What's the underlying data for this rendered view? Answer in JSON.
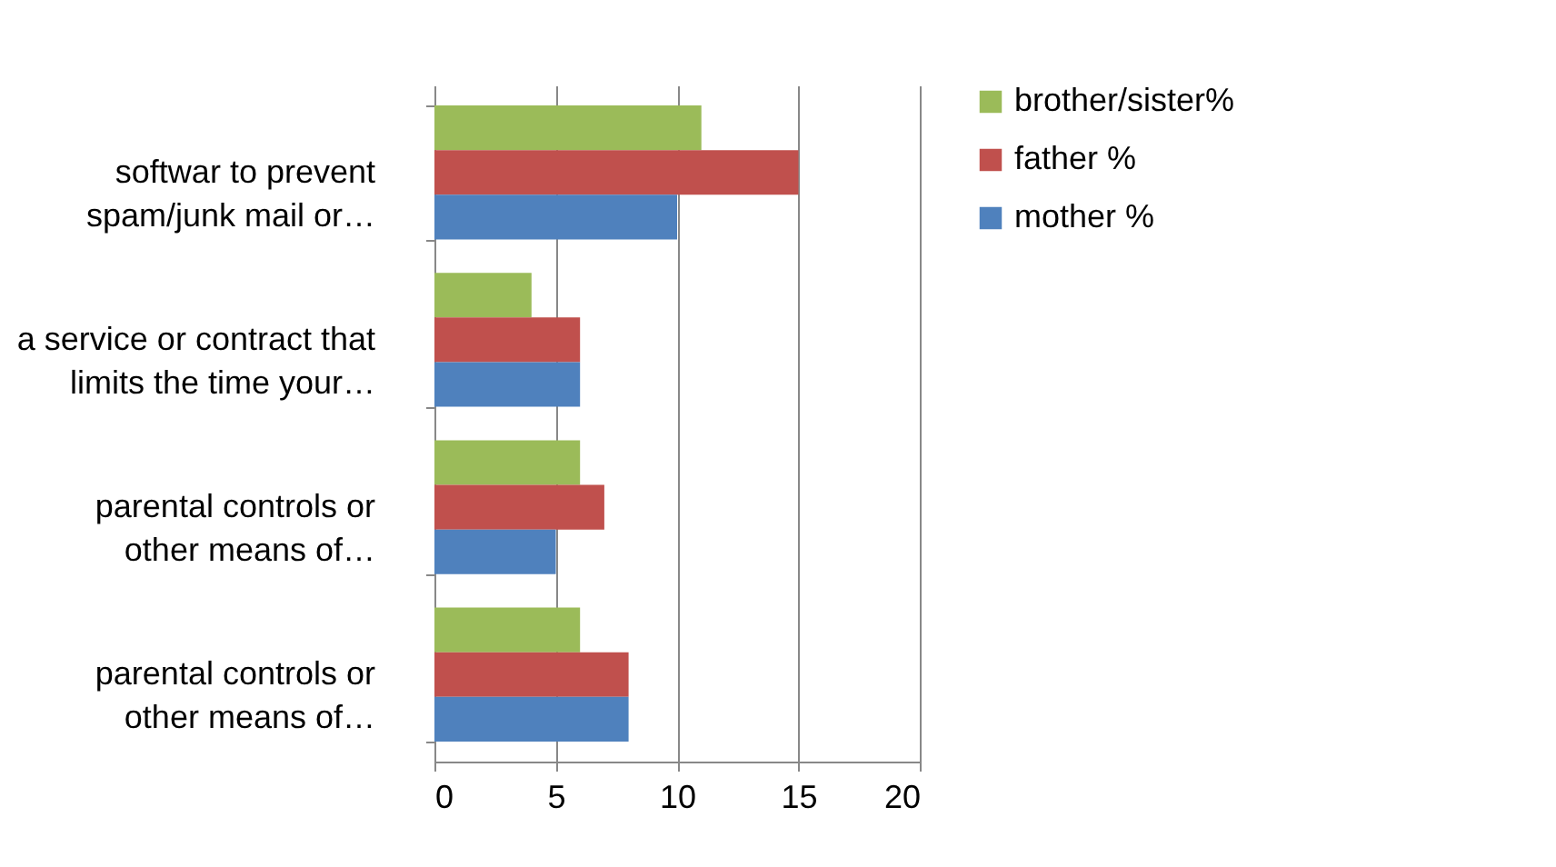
{
  "chart_data": {
    "type": "bar",
    "orientation": "horizontal",
    "categories": [
      "softwar to prevent\nspam/junk mail or…",
      "a service or contract that\nlimits the time your…",
      "parental controls or\nother means of…",
      "parental controls or\nother means of…"
    ],
    "series": [
      {
        "name": "brother/sister%",
        "color": "#9bbb59",
        "values": [
          11,
          4,
          6,
          6
        ]
      },
      {
        "name": "father %",
        "color": "#c0504d",
        "values": [
          15,
          6,
          7,
          8
        ]
      },
      {
        "name": "mother %",
        "color": "#4f81bd",
        "values": [
          10,
          6,
          5,
          8
        ]
      }
    ],
    "xlim": [
      0,
      20
    ],
    "xticks": [
      0,
      5,
      10,
      15,
      20
    ],
    "grid": "x",
    "legend": "right"
  }
}
